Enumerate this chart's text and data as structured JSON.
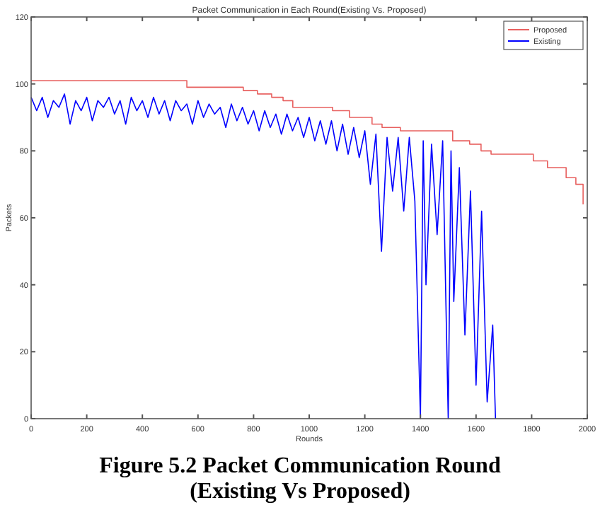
{
  "chart_data": {
    "type": "line",
    "title": "Packet Communication in Each Round(Existing Vs. Proposed)",
    "xlabel": "Rounds",
    "ylabel": "Packets",
    "xlim": [
      0,
      2000
    ],
    "xticks": [
      0,
      200,
      400,
      600,
      800,
      1000,
      1200,
      1400,
      1600,
      1800,
      2000
    ],
    "ylim": [
      0,
      120
    ],
    "yticks": [
      0,
      20,
      40,
      60,
      80,
      100,
      120
    ],
    "grid": false,
    "legend": "top right",
    "marker": "none",
    "line_style": "solid",
    "annotations": [
      "Figure 5.2 Packet Communication Round",
      "(Existing Vs Proposed)"
    ],
    "series": [
      {
        "name": "Proposed",
        "color": "#e8605f",
        "type": "step",
        "x": [
          0,
          560,
          763,
          814,
          865,
          906,
          941,
          1084,
          1145,
          1226,
          1262,
          1328,
          1516,
          1577,
          1618,
          1654,
          1806,
          1857,
          1924,
          1959,
          1985
        ],
        "values": [
          101,
          99,
          98,
          97,
          96,
          95,
          93,
          92,
          90,
          88,
          87,
          86,
          83,
          82,
          80,
          79,
          77,
          75,
          72,
          70,
          64
        ]
      },
      {
        "name": "Existing",
        "color": "#0000ff",
        "x": [
          0,
          20,
          40,
          60,
          80,
          100,
          120,
          140,
          160,
          180,
          200,
          220,
          240,
          260,
          280,
          300,
          320,
          340,
          360,
          380,
          400,
          420,
          440,
          460,
          480,
          500,
          520,
          540,
          560,
          580,
          600,
          620,
          640,
          660,
          680,
          700,
          720,
          740,
          760,
          780,
          800,
          820,
          840,
          860,
          880,
          900,
          920,
          940,
          960,
          980,
          1000,
          1020,
          1040,
          1060,
          1080,
          1100,
          1120,
          1140,
          1160,
          1180,
          1200,
          1220,
          1240,
          1260,
          1280,
          1300,
          1320,
          1340,
          1360,
          1380,
          1400,
          1410,
          1420,
          1440,
          1460,
          1480,
          1500,
          1510,
          1520,
          1540,
          1560,
          1580,
          1600,
          1620,
          1640,
          1660,
          1670
        ],
        "values": [
          96,
          92,
          96,
          90,
          95,
          93,
          97,
          88,
          95,
          92,
          96,
          89,
          95,
          93,
          96,
          91,
          95,
          88,
          96,
          92,
          95,
          90,
          96,
          91,
          95,
          89,
          95,
          92,
          94,
          88,
          95,
          90,
          94,
          91,
          93,
          87,
          94,
          89,
          93,
          88,
          92,
          86,
          92,
          87,
          91,
          85,
          91,
          86,
          90,
          84,
          90,
          83,
          89,
          82,
          89,
          80,
          88,
          79,
          87,
          78,
          86,
          70,
          85,
          50,
          84,
          68,
          84,
          62,
          84,
          65,
          0,
          83,
          40,
          82,
          55,
          83,
          0,
          80,
          35,
          75,
          25,
          68,
          10,
          62,
          5,
          28,
          0
        ]
      }
    ]
  }
}
